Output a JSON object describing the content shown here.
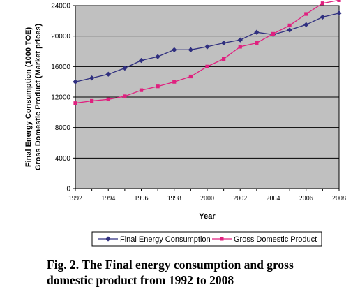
{
  "chart_data": {
    "type": "line",
    "x": [
      1992,
      1993,
      1994,
      1995,
      1996,
      1997,
      1998,
      1999,
      2000,
      2001,
      2002,
      2003,
      2004,
      2005,
      2006,
      2007,
      2008
    ],
    "series": [
      {
        "name": "Final Energy Consumption",
        "color": "#2f2f7f",
        "marker": "diamond",
        "values": [
          14000,
          14500,
          15000,
          15800,
          16800,
          17300,
          18200,
          18200,
          18600,
          19100,
          19500,
          20500,
          20200,
          20800,
          21500,
          22500,
          23000
        ]
      },
      {
        "name": "Gross Domestic Product",
        "color": "#e0207f",
        "marker": "square",
        "values": [
          11200,
          11500,
          11700,
          12100,
          12900,
          13400,
          14000,
          14700,
          16000,
          17000,
          18600,
          19100,
          20300,
          21400,
          22900,
          24300,
          24700
        ]
      }
    ],
    "xlim": [
      1992,
      2008
    ],
    "ylim": [
      0,
      24000
    ],
    "yticks": [
      0,
      4000,
      8000,
      12000,
      16000,
      20000,
      24000
    ],
    "xtick_labels": [
      "1992",
      "1994",
      "1996",
      "1998",
      "2000",
      "2002",
      "2004",
      "2006",
      "2008"
    ],
    "xlabel": "Year",
    "ylabel_line1": "Final Energy Consumption (1000 TOE)",
    "ylabel_line2": "Gross Domestic Product (Market prices)",
    "grid": true,
    "background": "#c0c0c0",
    "legend_position": "bottom"
  },
  "caption": {
    "line1": "Fig. 2. The Final energy consumption and gross",
    "line2": "domestic product from 1992 to 2008"
  }
}
